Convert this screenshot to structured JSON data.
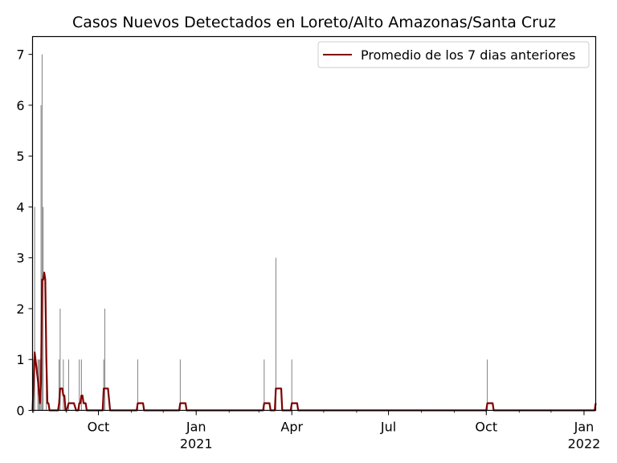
{
  "chart_data": {
    "type": "bar",
    "title": "Casos Nuevos Detectados en Loreto/Alto Amazonas/Santa Cruz",
    "xlabel": "",
    "ylabel": "",
    "x_range": [
      "2020-07-31",
      "2022-01-12"
    ],
    "ylim": [
      0,
      7.35
    ],
    "yticks": [
      0,
      1,
      2,
      3,
      4,
      5,
      6,
      7
    ],
    "xticks": [
      {
        "date": "2020-10-01",
        "label": "Oct",
        "sublabel": ""
      },
      {
        "date": "2021-01-01",
        "label": "Jan",
        "sublabel": "2021"
      },
      {
        "date": "2021-04-01",
        "label": "Apr",
        "sublabel": ""
      },
      {
        "date": "2021-07-01",
        "label": "Jul",
        "sublabel": ""
      },
      {
        "date": "2021-10-01",
        "label": "Oct",
        "sublabel": ""
      },
      {
        "date": "2022-01-01",
        "label": "Jan",
        "sublabel": "2022"
      }
    ],
    "grid": false,
    "legend": {
      "position": "top-right",
      "entries": [
        "Promedio de los 7 dias anteriores"
      ]
    },
    "series": [
      {
        "name": "Casos Nuevos",
        "kind": "bar",
        "color": "#808080",
        "points": [
          [
            "2020-08-01",
            1
          ],
          [
            "2020-08-02",
            4
          ],
          [
            "2020-08-05",
            1
          ],
          [
            "2020-08-06",
            1
          ],
          [
            "2020-08-07",
            1
          ],
          [
            "2020-08-08",
            6
          ],
          [
            "2020-08-09",
            7
          ],
          [
            "2020-08-10",
            4
          ],
          [
            "2020-08-13",
            1
          ],
          [
            "2020-08-25",
            1
          ],
          [
            "2020-08-26",
            2
          ],
          [
            "2020-08-29",
            1
          ],
          [
            "2020-09-03",
            1
          ],
          [
            "2020-09-13",
            1
          ],
          [
            "2020-09-15",
            1
          ],
          [
            "2020-10-06",
            1
          ],
          [
            "2020-10-07",
            2
          ],
          [
            "2020-11-07",
            1
          ],
          [
            "2020-12-17",
            1
          ],
          [
            "2021-03-06",
            1
          ],
          [
            "2021-03-17",
            3
          ],
          [
            "2021-04-01",
            1
          ],
          [
            "2021-10-02",
            1
          ],
          [
            "2022-01-12",
            1
          ]
        ]
      },
      {
        "name": "Promedio de los 7 dias anteriores",
        "kind": "line",
        "color": "#800000",
        "points": [
          [
            "2020-07-31",
            0
          ],
          [
            "2020-08-01",
            0.5
          ],
          [
            "2020-08-02",
            1.14
          ],
          [
            "2020-08-05",
            0.6
          ],
          [
            "2020-08-07",
            0.14
          ],
          [
            "2020-08-08",
            0.6
          ],
          [
            "2020-08-09",
            2.57
          ],
          [
            "2020-08-10",
            2.57
          ],
          [
            "2020-08-11",
            2.71
          ],
          [
            "2020-08-12",
            2.57
          ],
          [
            "2020-08-13",
            1.0
          ],
          [
            "2020-08-14",
            0.14
          ],
          [
            "2020-08-15",
            0.14
          ],
          [
            "2020-08-16",
            0
          ],
          [
            "2020-08-24",
            0
          ],
          [
            "2020-08-25",
            0.14
          ],
          [
            "2020-08-26",
            0.43
          ],
          [
            "2020-08-27",
            0.43
          ],
          [
            "2020-08-28",
            0.43
          ],
          [
            "2020-08-29",
            0.29
          ],
          [
            "2020-08-30",
            0.29
          ],
          [
            "2020-08-31",
            0
          ],
          [
            "2020-09-01",
            0
          ],
          [
            "2020-09-03",
            0.14
          ],
          [
            "2020-09-08",
            0.14
          ],
          [
            "2020-09-10",
            0
          ],
          [
            "2020-09-12",
            0
          ],
          [
            "2020-09-13",
            0.14
          ],
          [
            "2020-09-14",
            0.14
          ],
          [
            "2020-09-15",
            0.29
          ],
          [
            "2020-09-16",
            0.29
          ],
          [
            "2020-09-17",
            0.14
          ],
          [
            "2020-09-19",
            0.14
          ],
          [
            "2020-09-20",
            0
          ],
          [
            "2020-10-05",
            0
          ],
          [
            "2020-10-06",
            0.43
          ],
          [
            "2020-10-10",
            0.43
          ],
          [
            "2020-10-12",
            0
          ],
          [
            "2020-11-06",
            0
          ],
          [
            "2020-11-07",
            0.14
          ],
          [
            "2020-11-12",
            0.14
          ],
          [
            "2020-11-13",
            0
          ],
          [
            "2020-12-16",
            0
          ],
          [
            "2020-12-17",
            0.14
          ],
          [
            "2020-12-22",
            0.14
          ],
          [
            "2020-12-23",
            0
          ],
          [
            "2021-03-05",
            0
          ],
          [
            "2021-03-06",
            0.14
          ],
          [
            "2021-03-11",
            0.14
          ],
          [
            "2021-03-12",
            0
          ],
          [
            "2021-03-16",
            0
          ],
          [
            "2021-03-17",
            0.43
          ],
          [
            "2021-03-22",
            0.43
          ],
          [
            "2021-03-23",
            0
          ],
          [
            "2021-03-31",
            0
          ],
          [
            "2021-04-01",
            0.14
          ],
          [
            "2021-04-06",
            0.14
          ],
          [
            "2021-04-07",
            0
          ],
          [
            "2021-10-01",
            0
          ],
          [
            "2021-10-02",
            0.14
          ],
          [
            "2021-10-07",
            0.14
          ],
          [
            "2021-10-08",
            0
          ],
          [
            "2022-01-11",
            0
          ],
          [
            "2022-01-12",
            0.14
          ]
        ]
      }
    ]
  }
}
